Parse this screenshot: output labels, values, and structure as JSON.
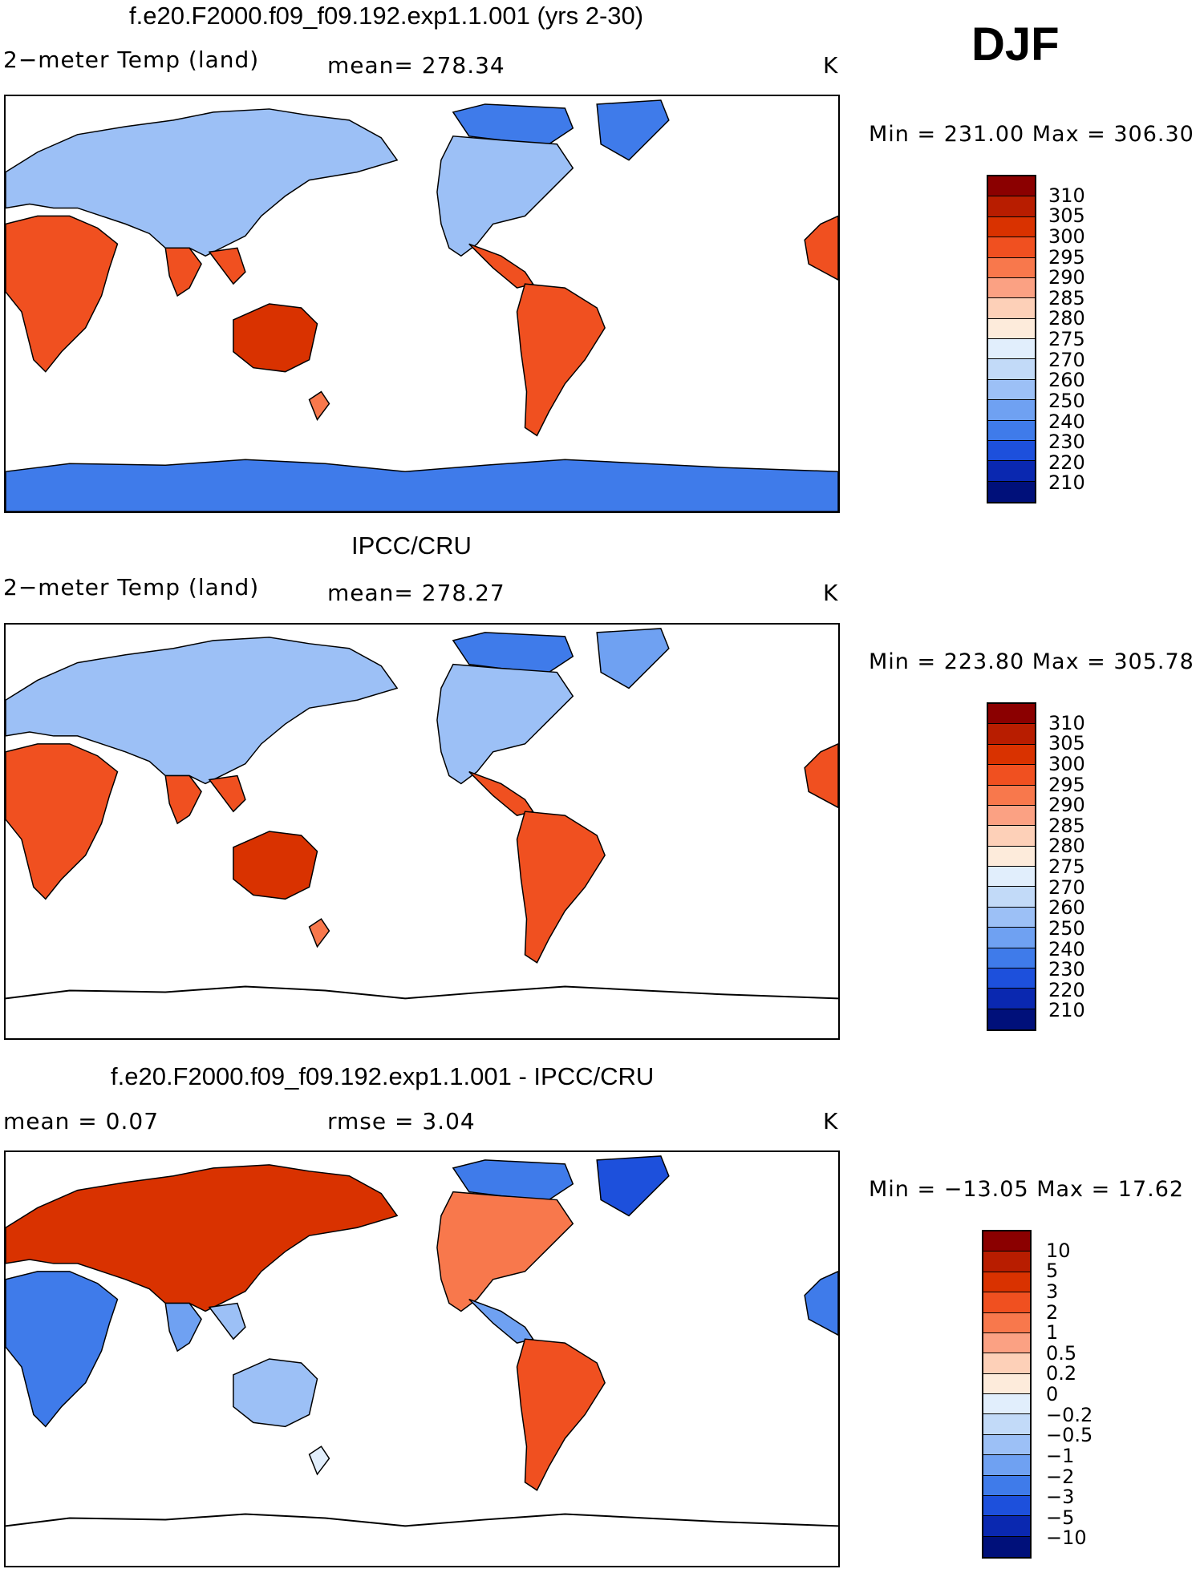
{
  "season": "DJF",
  "panels": [
    {
      "id": "model",
      "title": "f.e20.F2000.f09_f09.192.exp1.1.001 (yrs 2-30)",
      "left_label": "2−meter Temp (land)",
      "mid_label": "mean=  278.34",
      "unit": "K",
      "minmax": "Min  =  231.00  Max  =  306.30",
      "colorbar_labels": [
        "310",
        "305",
        "300",
        "295",
        "290",
        "285",
        "280",
        "275",
        "270",
        "260",
        "250",
        "240",
        "230",
        "220",
        "210"
      ],
      "colorbar_colors": [
        "#8b0000",
        "#b81d00",
        "#d93200",
        "#f05020",
        "#f8784c",
        "#fba183",
        "#fdd0b8",
        "#fdebdb",
        "#e1eefc",
        "#c2daf8",
        "#9cc0f6",
        "#6fa1f2",
        "#3f7bea",
        "#1d50dc",
        "#0a28b0",
        "#00107a"
      ],
      "antarctica": true,
      "palette": "temp"
    },
    {
      "id": "obs",
      "title": "IPCC/CRU",
      "left_label": "2−meter Temp (land)",
      "mid_label": "mean=  278.27",
      "unit": "K",
      "minmax": "Min  =  223.80  Max  =  305.78",
      "colorbar_labels": [
        "310",
        "305",
        "300",
        "295",
        "290",
        "285",
        "280",
        "275",
        "270",
        "260",
        "250",
        "240",
        "230",
        "220",
        "210"
      ],
      "colorbar_colors": [
        "#8b0000",
        "#b81d00",
        "#d93200",
        "#f05020",
        "#f8784c",
        "#fba183",
        "#fdd0b8",
        "#fdebdb",
        "#e1eefc",
        "#c2daf8",
        "#9cc0f6",
        "#6fa1f2",
        "#3f7bea",
        "#1d50dc",
        "#0a28b0",
        "#00107a"
      ],
      "antarctica": false,
      "palette": "temp"
    },
    {
      "id": "diff",
      "title": "f.e20.F2000.f09_f09.192.exp1.1.001 - IPCC/CRU",
      "left_label": "mean  =     0.07",
      "mid_label": "rmse  =     3.04",
      "unit": "K",
      "minmax": "Min  = −13.05  Max  =    17.62",
      "colorbar_labels": [
        "10",
        "5",
        "3",
        "2",
        "1",
        "0.5",
        "0.2",
        "0",
        "−0.2",
        "−0.5",
        "−1",
        "−2",
        "−3",
        "−5",
        "−10"
      ],
      "colorbar_colors": [
        "#8b0000",
        "#b81d00",
        "#d93200",
        "#f05020",
        "#f8784c",
        "#fba183",
        "#fdd0b8",
        "#fdebdb",
        "#e1eefc",
        "#c2daf8",
        "#9cc0f6",
        "#6fa1f2",
        "#3f7bea",
        "#1d50dc",
        "#0a28b0",
        "#00107a"
      ],
      "antarctica": false,
      "palette": "diff"
    }
  ]
}
